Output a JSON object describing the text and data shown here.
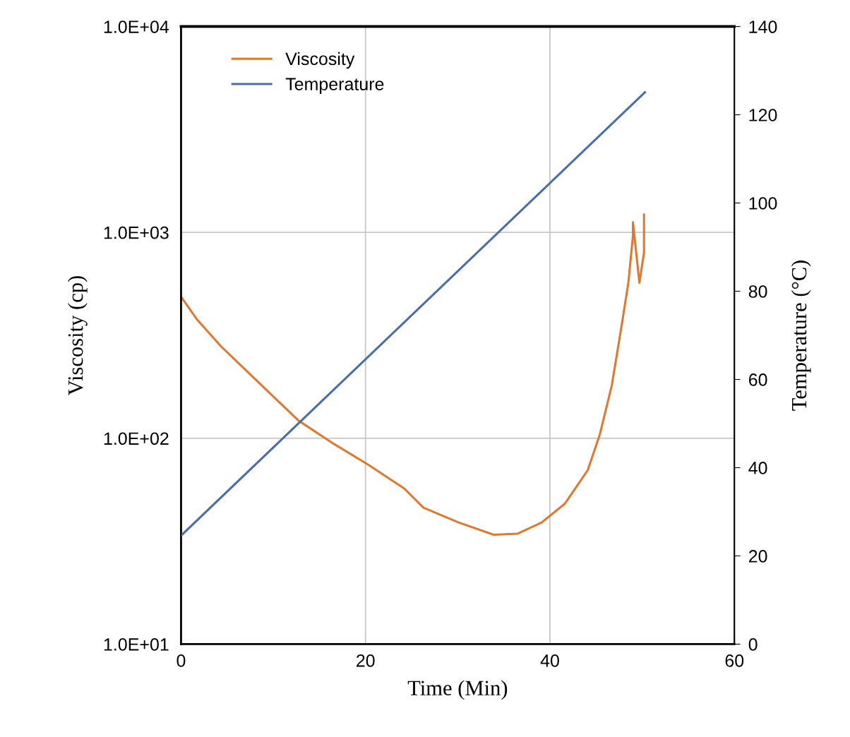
{
  "chart_data": {
    "type": "line",
    "xlabel": "Time (Min)",
    "ylabel": "Viscosity (cp)",
    "y2label": "Temperature (°C)",
    "series": [
      {
        "name": "Viscosity",
        "color": "#e0782f",
        "x": [
          0,
          1.76,
          4.29,
          7.66,
          12.72,
          16.55,
          20.38,
          24.2,
          26.28,
          30.1,
          33.9,
          36.5,
          39.1,
          41.6,
          44.1,
          45.4,
          46.7,
          47.7,
          48.5,
          49.0,
          49.0,
          49.7,
          50.2,
          50.2
        ],
        "values": [
          487,
          376,
          281,
          201,
          122,
          94,
          74,
          57,
          46,
          39,
          34,
          34.4,
          39,
          48,
          70,
          104,
          180,
          337,
          569,
          962,
          1120,
          569,
          796,
          1220
        ]
      },
      {
        "name": "Temperature",
        "color": "#4a6ea9",
        "axis": "y2",
        "x": [
          0,
          50.3
        ],
        "values": [
          24.6,
          125.1
        ]
      }
    ],
    "xlim": [
      0,
      60
    ],
    "xticks": [
      0,
      20,
      40,
      60
    ],
    "log": "y",
    "ylim": [
      10,
      10000
    ],
    "yticks": [
      {
        "value": 10,
        "label": "1.0E+01"
      },
      {
        "value": 100,
        "label": "1.0E+02"
      },
      {
        "value": 1000,
        "label": "1.0E+03"
      },
      {
        "value": 10000,
        "label": "1.0E+04"
      }
    ],
    "y2lim": [
      0,
      140
    ],
    "y2ticks": [
      0,
      20,
      40,
      60,
      80,
      100,
      120,
      140
    ],
    "grid": true,
    "legend": "top left",
    "line_style": "solid",
    "marker": "none"
  }
}
